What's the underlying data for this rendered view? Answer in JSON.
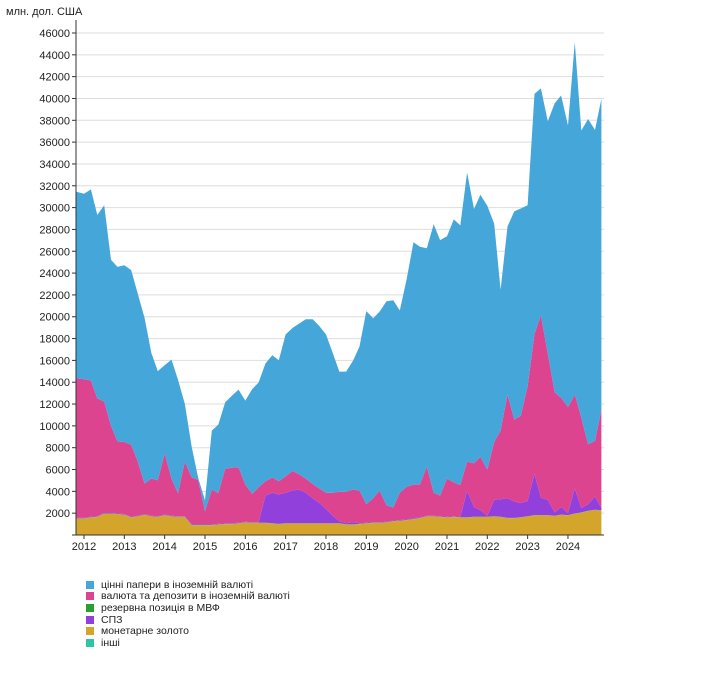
{
  "chart_data": {
    "type": "area",
    "stacked": true,
    "title": "",
    "ylabel": "млн. дол. США",
    "xlabel": "",
    "ylim": [
      0,
      47000
    ],
    "yticks": [
      2000,
      4000,
      6000,
      8000,
      10000,
      12000,
      14000,
      16000,
      18000,
      20000,
      22000,
      24000,
      26000,
      28000,
      30000,
      32000,
      34000,
      36000,
      38000,
      40000,
      42000,
      44000,
      46000
    ],
    "xticks": [
      "2012",
      "2013",
      "2014",
      "2015",
      "2016",
      "2017",
      "2018",
      "2019",
      "2020",
      "2021",
      "2022",
      "2023",
      "2024"
    ],
    "xrange": [
      2011.8,
      2024.83
    ],
    "grid": true,
    "legend_position": "bottom-left",
    "x": [
      2011.8,
      2012.0,
      2012.17,
      2012.33,
      2012.5,
      2012.67,
      2012.83,
      2013.0,
      2013.17,
      2013.33,
      2013.5,
      2013.67,
      2013.83,
      2014.0,
      2014.17,
      2014.33,
      2014.5,
      2014.67,
      2014.83,
      2015.0,
      2015.17,
      2015.33,
      2015.5,
      2015.67,
      2015.83,
      2016.0,
      2016.17,
      2016.33,
      2016.5,
      2016.67,
      2016.83,
      2017.0,
      2017.17,
      2017.33,
      2017.5,
      2017.67,
      2017.83,
      2018.0,
      2018.17,
      2018.33,
      2018.5,
      2018.67,
      2018.83,
      2019.0,
      2019.17,
      2019.33,
      2019.5,
      2019.67,
      2019.83,
      2020.0,
      2020.17,
      2020.33,
      2020.5,
      2020.67,
      2020.83,
      2021.0,
      2021.17,
      2021.33,
      2021.5,
      2021.67,
      2021.83,
      2022.0,
      2022.17,
      2022.33,
      2022.5,
      2022.67,
      2022.83,
      2023.0,
      2023.17,
      2023.33,
      2023.5,
      2023.67,
      2023.83,
      2024.0,
      2024.17,
      2024.33,
      2024.5,
      2024.67,
      2024.83
    ],
    "series": [
      {
        "name": "монетарне золото",
        "color": "#D4A52B",
        "values": [
          1500,
          1500,
          1600,
          1650,
          1950,
          1950,
          1900,
          1850,
          1600,
          1700,
          1850,
          1700,
          1650,
          1800,
          1700,
          1650,
          1650,
          900,
          900,
          900,
          900,
          950,
          1000,
          1000,
          1050,
          1150,
          1100,
          1100,
          1100,
          1050,
          1000,
          1050,
          1050,
          1050,
          1050,
          1050,
          1050,
          1050,
          1050,
          1050,
          950,
          950,
          1000,
          1050,
          1100,
          1100,
          1150,
          1250,
          1300,
          1350,
          1450,
          1550,
          1700,
          1700,
          1650,
          1600,
          1650,
          1600,
          1600,
          1650,
          1650,
          1650,
          1700,
          1650,
          1550,
          1550,
          1600,
          1700,
          1800,
          1800,
          1800,
          1750,
          1850,
          1800,
          1950,
          2050,
          2200,
          2300,
          2250
        ]
      },
      {
        "name": "інші",
        "color": "#2EC4A6",
        "values": [
          20,
          20,
          20,
          20,
          20,
          20,
          20,
          20,
          20,
          20,
          20,
          20,
          20,
          20,
          20,
          20,
          20,
          20,
          20,
          20,
          20,
          20,
          20,
          20,
          20,
          20,
          20,
          20,
          20,
          20,
          20,
          20,
          20,
          20,
          20,
          20,
          20,
          20,
          20,
          20,
          20,
          20,
          20,
          20,
          20,
          20,
          20,
          20,
          20,
          20,
          20,
          20,
          20,
          20,
          20,
          20,
          20,
          20,
          20,
          20,
          20,
          20,
          20,
          20,
          20,
          20,
          20,
          20,
          20,
          20,
          20,
          20,
          20,
          20,
          20,
          20,
          20,
          20,
          20
        ]
      },
      {
        "name": "резервна позиція в МВФ",
        "color": "#2CA02C",
        "values": [
          0,
          0,
          0,
          0,
          0,
          0,
          0,
          0,
          0,
          0,
          0,
          0,
          0,
          0,
          0,
          0,
          0,
          0,
          0,
          0,
          0,
          0,
          0,
          0,
          0,
          0,
          0,
          0,
          0,
          0,
          0,
          0,
          0,
          0,
          0,
          0,
          0,
          0,
          0,
          0,
          0,
          0,
          0,
          0,
          0,
          0,
          0,
          0,
          0,
          0,
          0,
          0,
          0,
          0,
          0,
          0,
          0,
          0,
          0,
          0,
          0,
          0,
          0,
          0,
          0,
          0,
          0,
          0,
          0,
          0,
          0,
          0,
          0,
          0,
          0,
          0,
          0,
          0,
          0
        ]
      },
      {
        "name": "СПЗ",
        "color": "#9140DC",
        "values": [
          50,
          50,
          50,
          50,
          50,
          50,
          50,
          50,
          50,
          50,
          50,
          50,
          50,
          50,
          50,
          50,
          50,
          50,
          50,
          50,
          50,
          50,
          50,
          50,
          50,
          50,
          50,
          50,
          2500,
          2800,
          2700,
          2800,
          3000,
          3100,
          2800,
          2300,
          1900,
          1300,
          700,
          200,
          100,
          200,
          50,
          50,
          50,
          50,
          50,
          50,
          50,
          50,
          50,
          50,
          50,
          50,
          50,
          50,
          50,
          50,
          2400,
          900,
          600,
          100,
          1500,
          1600,
          1800,
          1500,
          1300,
          1400,
          3800,
          1600,
          1400,
          300,
          700,
          200,
          2300,
          400,
          600,
          1200,
          200
        ]
      },
      {
        "name": "валюта та депозити в іноземній валюті",
        "color": "#DD4490",
        "values": [
          12800,
          12700,
          12500,
          10800,
          10200,
          8000,
          6600,
          6600,
          6600,
          5000,
          2800,
          3400,
          3300,
          5600,
          3400,
          2100,
          5000,
          4300,
          4100,
          1200,
          3200,
          2800,
          5000,
          5100,
          5100,
          3400,
          2600,
          3200,
          1300,
          1400,
          1200,
          1500,
          1800,
          1400,
          1300,
          1300,
          1300,
          1500,
          2100,
          2700,
          2900,
          3000,
          3000,
          1700,
          2200,
          2900,
          1500,
          1200,
          2500,
          3000,
          3100,
          3000,
          4500,
          2100,
          1900,
          3500,
          3100,
          2900,
          2700,
          4000,
          4900,
          4200,
          5300,
          6300,
          9500,
          7500,
          8000,
          10500,
          12800,
          16700,
          13400,
          11000,
          10000,
          9700,
          8600,
          8300,
          5500,
          5100,
          9000
        ]
      },
      {
        "name": "цінні папери в іноземній валюті",
        "color": "#45A6D9",
        "values": [
          17100,
          17000,
          17500,
          16800,
          18000,
          15200,
          16000,
          16200,
          16000,
          15400,
          15200,
          11500,
          10000,
          8100,
          10900,
          10400,
          5300,
          2800,
          200,
          1000,
          5400,
          6300,
          6100,
          6600,
          7100,
          7700,
          9600,
          9600,
          10800,
          11200,
          11100,
          13000,
          13100,
          13800,
          14600,
          15100,
          14900,
          14500,
          12800,
          11000,
          11000,
          11800,
          13200,
          17700,
          16500,
          16400,
          18700,
          19000,
          16700,
          19000,
          22200,
          21800,
          20000,
          24600,
          23400,
          22200,
          24100,
          23800,
          26500,
          23300,
          24000,
          24200,
          20000,
          12900,
          15400,
          19100,
          19000,
          16600,
          22000,
          20800,
          21300,
          26500,
          27700,
          25800,
          32300,
          26300,
          29800,
          28500,
          28500
        ]
      }
    ]
  },
  "legend": {
    "items": [
      {
        "label": "цінні папери в іноземній валюті",
        "color": "#45A6D9"
      },
      {
        "label": "валюта та депозити в іноземній валюті",
        "color": "#DD4490"
      },
      {
        "label": "резервна позиція в МВФ",
        "color": "#2CA02C"
      },
      {
        "label": "СПЗ",
        "color": "#9140DC"
      },
      {
        "label": "монетарне золото",
        "color": "#D4A52B"
      },
      {
        "label": "інші",
        "color": "#2EC4A6"
      }
    ]
  }
}
